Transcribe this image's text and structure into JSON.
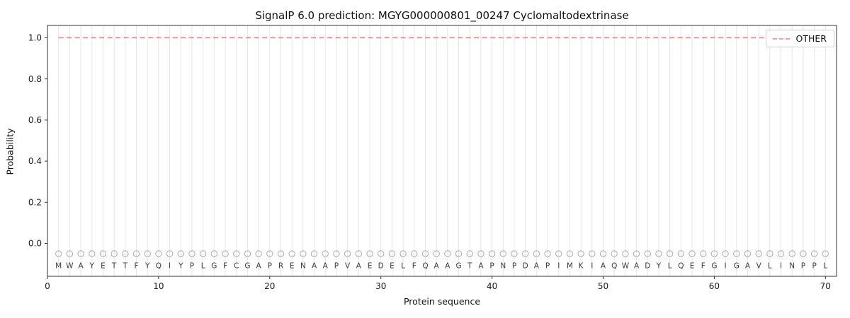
{
  "chart_data": {
    "type": "line",
    "title": "SignalP 6.0 prediction: MGYG000000801_00247 Cyclomaltodextrinase",
    "xlabel": "Protein sequence",
    "ylabel": "Probability",
    "xlim": [
      0,
      71
    ],
    "ylim": [
      -0.16,
      1.06
    ],
    "xticks": [
      "0",
      "10",
      "20",
      "30",
      "40",
      "50",
      "60",
      "70"
    ],
    "xtick_values": [
      0,
      10,
      20,
      30,
      40,
      50,
      60,
      70
    ],
    "yticks": [
      "0.0",
      "0.2",
      "0.4",
      "0.6",
      "0.8",
      "1.0"
    ],
    "ytick_values": [
      0.0,
      0.2,
      0.4,
      0.6,
      0.8,
      1.0
    ],
    "grid": "vertical-per-residue",
    "legend_position": "upper-right",
    "sequence": "MWAYETTFYQIYPLGFCGAPRENAAPVAEDELFQAAGTAPNPDAPIMKIAQWADYLQEFGIGAVLINPPL",
    "series": [
      {
        "name": "OTHER",
        "color": "#f08080",
        "linestyle": "dashed",
        "x_start": 1,
        "x_end": 70,
        "constant_y": 1.0
      }
    ],
    "residue_markers": {
      "symbol": "open-circle",
      "y": -0.05,
      "color": "#b3b3b3"
    },
    "letters": {
      "y": -0.108,
      "color": "#3d3d3d"
    },
    "colors": {
      "grid": "#e6e6e6",
      "spine": "#333333",
      "tick_label": "#1a1a1a"
    }
  }
}
